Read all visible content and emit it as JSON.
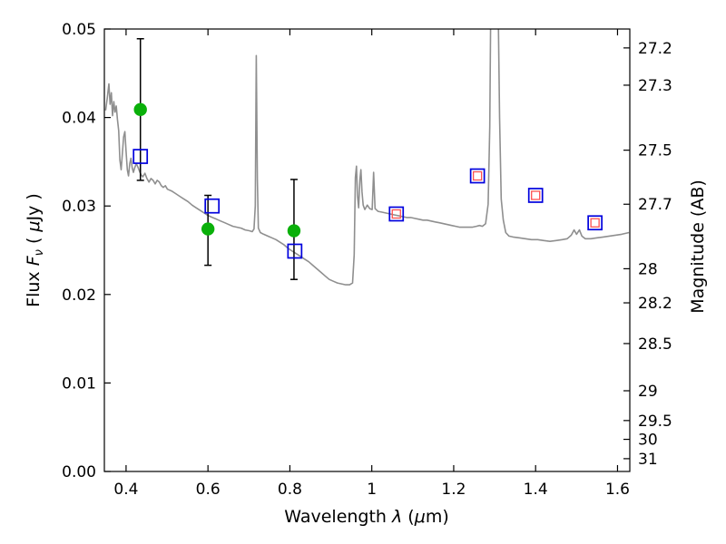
{
  "chart_data": {
    "type": "line",
    "title": "",
    "xlabel": "Wavelength λ (μm)",
    "ylabel": "Flux Fν ( μJy )",
    "ylabel_right": "Magnitude (AB)",
    "xlabel_parts": [
      "Wavelength ",
      "λ",
      " (",
      "μ",
      "m)"
    ],
    "ylabel_left_parts": [
      "Flux ",
      "F",
      "ν",
      " ( ",
      "μ",
      "Jy )"
    ],
    "xlim": [
      0.347,
      1.63
    ],
    "ylim": [
      0.0,
      0.05
    ],
    "grid": false,
    "legend": null,
    "x_ticks": [
      {
        "label": "0.4",
        "value": 0.4
      },
      {
        "label": "0.6",
        "value": 0.6
      },
      {
        "label": "0.8",
        "value": 0.8
      },
      {
        "label": "1",
        "value": 1.0
      },
      {
        "label": "1.2",
        "value": 1.2
      },
      {
        "label": "1.4",
        "value": 1.4
      },
      {
        "label": "1.6",
        "value": 1.6
      }
    ],
    "y_ticks_left": [
      {
        "label": "0.00",
        "value": 0.0
      },
      {
        "label": "0.01",
        "value": 0.01
      },
      {
        "label": "0.02",
        "value": 0.02
      },
      {
        "label": "0.03",
        "value": 0.03
      },
      {
        "label": "0.04",
        "value": 0.04
      },
      {
        "label": "0.05",
        "value": 0.05
      }
    ],
    "y_ticks_right": [
      {
        "label": "27.2",
        "flux": 0.047863
      },
      {
        "label": "27.3",
        "flux": 0.043652
      },
      {
        "label": "27.5",
        "flux": 0.036308
      },
      {
        "label": "27.7",
        "flux": 0.0302
      },
      {
        "label": "28",
        "flux": 0.022909
      },
      {
        "label": "28.2",
        "flux": 0.019055
      },
      {
        "label": "28.5",
        "flux": 0.014454
      },
      {
        "label": "29",
        "flux": 0.00912
      },
      {
        "label": "29.5",
        "flux": 0.005754
      },
      {
        "label": "30",
        "flux": 0.003631
      },
      {
        "label": "31",
        "flux": 0.001445
      }
    ],
    "colors": {
      "spectrum": "#8f8f8f",
      "green_circle": "#0ab00a",
      "blue_square": "#0000dd",
      "red_square": "#ff5050",
      "error_bar": "#000000",
      "frame": "#000000"
    },
    "series": {
      "spectrum": {
        "color": "#8f8f8f",
        "points": [
          [
            0.35,
            0.0408
          ],
          [
            0.354,
            0.0422
          ],
          [
            0.358,
            0.0438
          ],
          [
            0.361,
            0.0415
          ],
          [
            0.364,
            0.0428
          ],
          [
            0.367,
            0.0402
          ],
          [
            0.37,
            0.0418
          ],
          [
            0.373,
            0.0406
          ],
          [
            0.376,
            0.0413
          ],
          [
            0.379,
            0.0398
          ],
          [
            0.382,
            0.0385
          ],
          [
            0.385,
            0.0352
          ],
          [
            0.388,
            0.0341
          ],
          [
            0.391,
            0.036
          ],
          [
            0.394,
            0.0378
          ],
          [
            0.397,
            0.0384
          ],
          [
            0.4,
            0.0362
          ],
          [
            0.403,
            0.0341
          ],
          [
            0.406,
            0.0334
          ],
          [
            0.409,
            0.0348
          ],
          [
            0.412,
            0.0354
          ],
          [
            0.415,
            0.0343
          ],
          [
            0.418,
            0.0338
          ],
          [
            0.421,
            0.0343
          ],
          [
            0.425,
            0.0348
          ],
          [
            0.429,
            0.0344
          ],
          [
            0.433,
            0.0339
          ],
          [
            0.437,
            0.0335
          ],
          [
            0.441,
            0.0333
          ],
          [
            0.446,
            0.0337
          ],
          [
            0.451,
            0.0331
          ],
          [
            0.456,
            0.0327
          ],
          [
            0.461,
            0.0331
          ],
          [
            0.466,
            0.0329
          ],
          [
            0.471,
            0.0325
          ],
          [
            0.476,
            0.0329
          ],
          [
            0.481,
            0.0327
          ],
          [
            0.486,
            0.0323
          ],
          [
            0.491,
            0.0321
          ],
          [
            0.496,
            0.0323
          ],
          [
            0.501,
            0.0319
          ],
          [
            0.511,
            0.0317
          ],
          [
            0.521,
            0.0314
          ],
          [
            0.531,
            0.0311
          ],
          [
            0.541,
            0.0308
          ],
          [
            0.551,
            0.0305
          ],
          [
            0.561,
            0.0301
          ],
          [
            0.571,
            0.0298
          ],
          [
            0.581,
            0.0295
          ],
          [
            0.591,
            0.0292
          ],
          [
            0.601,
            0.0289
          ],
          [
            0.611,
            0.0287
          ],
          [
            0.621,
            0.0285
          ],
          [
            0.631,
            0.0283
          ],
          [
            0.641,
            0.0281
          ],
          [
            0.651,
            0.0279
          ],
          [
            0.661,
            0.0277
          ],
          [
            0.671,
            0.0276
          ],
          [
            0.681,
            0.0275
          ],
          [
            0.691,
            0.0273
          ],
          [
            0.701,
            0.0272
          ],
          [
            0.708,
            0.0271
          ],
          [
            0.7125,
            0.0274
          ],
          [
            0.7155,
            0.03
          ],
          [
            0.718,
            0.047
          ],
          [
            0.7205,
            0.033
          ],
          [
            0.723,
            0.0275
          ],
          [
            0.728,
            0.027
          ],
          [
            0.736,
            0.0268
          ],
          [
            0.746,
            0.0266
          ],
          [
            0.756,
            0.0264
          ],
          [
            0.766,
            0.0262
          ],
          [
            0.776,
            0.0259
          ],
          [
            0.786,
            0.0256
          ],
          [
            0.796,
            0.0252
          ],
          [
            0.806,
            0.0249
          ],
          [
            0.816,
            0.0246
          ],
          [
            0.826,
            0.0243
          ],
          [
            0.836,
            0.024
          ],
          [
            0.846,
            0.0237
          ],
          [
            0.856,
            0.0233
          ],
          [
            0.866,
            0.0229
          ],
          [
            0.876,
            0.0225
          ],
          [
            0.886,
            0.0221
          ],
          [
            0.896,
            0.0217
          ],
          [
            0.906,
            0.0215
          ],
          [
            0.916,
            0.0213
          ],
          [
            0.926,
            0.0212
          ],
          [
            0.936,
            0.0211
          ],
          [
            0.946,
            0.0211
          ],
          [
            0.953,
            0.0213
          ],
          [
            0.957,
            0.0245
          ],
          [
            0.96,
            0.0332
          ],
          [
            0.9625,
            0.0345
          ],
          [
            0.965,
            0.0312
          ],
          [
            0.968,
            0.0298
          ],
          [
            0.971,
            0.033
          ],
          [
            0.9735,
            0.0341
          ],
          [
            0.976,
            0.0316
          ],
          [
            0.979,
            0.0301
          ],
          [
            0.983,
            0.0296
          ],
          [
            0.989,
            0.0301
          ],
          [
            0.995,
            0.0297
          ],
          [
            1.001,
            0.0296
          ],
          [
            1.0045,
            0.0338
          ],
          [
            1.008,
            0.0297
          ],
          [
            1.015,
            0.0294
          ],
          [
            1.025,
            0.0293
          ],
          [
            1.035,
            0.0292
          ],
          [
            1.045,
            0.0291
          ],
          [
            1.055,
            0.029
          ],
          [
            1.065,
            0.0289
          ],
          [
            1.075,
            0.0288
          ],
          [
            1.085,
            0.0287
          ],
          [
            1.095,
            0.0287
          ],
          [
            1.105,
            0.0286
          ],
          [
            1.115,
            0.0285
          ],
          [
            1.125,
            0.0284
          ],
          [
            1.135,
            0.0284
          ],
          [
            1.145,
            0.0283
          ],
          [
            1.155,
            0.0282
          ],
          [
            1.165,
            0.0281
          ],
          [
            1.175,
            0.028
          ],
          [
            1.185,
            0.0279
          ],
          [
            1.195,
            0.0278
          ],
          [
            1.205,
            0.0277
          ],
          [
            1.215,
            0.0276
          ],
          [
            1.225,
            0.0276
          ],
          [
            1.235,
            0.0276
          ],
          [
            1.245,
            0.0276
          ],
          [
            1.255,
            0.0277
          ],
          [
            1.263,
            0.0278
          ],
          [
            1.27,
            0.0277
          ],
          [
            1.278,
            0.028
          ],
          [
            1.284,
            0.0302
          ],
          [
            1.288,
            0.039
          ],
          [
            1.2905,
            0.053
          ],
          [
            1.3085,
            0.053
          ],
          [
            1.312,
            0.04
          ],
          [
            1.316,
            0.0308
          ],
          [
            1.321,
            0.0284
          ],
          [
            1.327,
            0.027
          ],
          [
            1.335,
            0.0266
          ],
          [
            1.345,
            0.0265
          ],
          [
            1.36,
            0.0264
          ],
          [
            1.375,
            0.0263
          ],
          [
            1.39,
            0.0262
          ],
          [
            1.405,
            0.0262
          ],
          [
            1.42,
            0.0261
          ],
          [
            1.435,
            0.026
          ],
          [
            1.45,
            0.0261
          ],
          [
            1.465,
            0.0262
          ],
          [
            1.477,
            0.0263
          ],
          [
            1.487,
            0.0267
          ],
          [
            1.494,
            0.0273
          ],
          [
            1.5,
            0.0268
          ],
          [
            1.507,
            0.0273
          ],
          [
            1.513,
            0.0266
          ],
          [
            1.521,
            0.0263
          ],
          [
            1.535,
            0.0263
          ],
          [
            1.55,
            0.0264
          ],
          [
            1.565,
            0.0265
          ],
          [
            1.58,
            0.0266
          ],
          [
            1.595,
            0.0267
          ],
          [
            1.61,
            0.0268
          ],
          [
            1.628,
            0.027
          ]
        ]
      },
      "green_circles": {
        "color": "#0ab00a",
        "points": [
          {
            "x": 0.435,
            "y": 0.0409,
            "err_lo": 0.008,
            "err_hi": 0.008
          },
          {
            "x": 0.6,
            "y": 0.0274,
            "err_lo": 0.0041,
            "err_hi": 0.0038
          },
          {
            "x": 0.81,
            "y": 0.0272,
            "err_lo": 0.0055,
            "err_hi": 0.0058
          }
        ]
      },
      "blue_squares": {
        "color": "#0000dd",
        "points": [
          {
            "x": 0.435,
            "y": 0.0356
          },
          {
            "x": 0.61,
            "y": 0.03
          },
          {
            "x": 0.812,
            "y": 0.0249
          },
          {
            "x": 1.06,
            "y": 0.0291
          },
          {
            "x": 1.258,
            "y": 0.0334
          },
          {
            "x": 1.4,
            "y": 0.0312
          },
          {
            "x": 1.545,
            "y": 0.0281
          }
        ]
      },
      "red_squares": {
        "color": "#ff5050",
        "points": [
          {
            "x": 1.06,
            "y": 0.0291
          },
          {
            "x": 1.258,
            "y": 0.0334
          },
          {
            "x": 1.4,
            "y": 0.0312
          },
          {
            "x": 1.545,
            "y": 0.0281
          }
        ]
      }
    }
  }
}
